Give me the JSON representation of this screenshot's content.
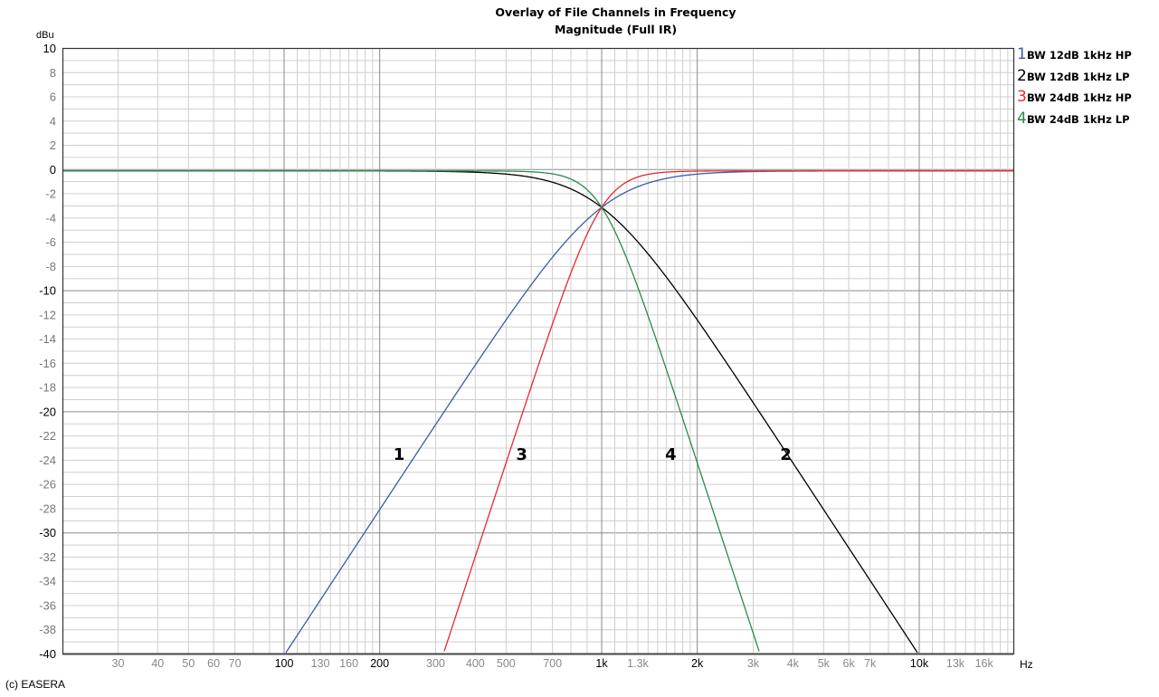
{
  "header": {
    "title_line1": "Overlay of File Channels in Frequency",
    "title_line2": "Magnitude (Full IR)"
  },
  "axes": {
    "y_unit": "dBu",
    "x_unit": "Hz"
  },
  "legend": [
    {
      "num": "1",
      "label": "BW 12dB 1kHz HP",
      "color": "#3c5aa8"
    },
    {
      "num": "2",
      "label": "BW 12dB 1kHz LP",
      "color": "#000000"
    },
    {
      "num": "3",
      "label": "BW 24dB 1kHz HP",
      "color": "#e8282c"
    },
    {
      "num": "4",
      "label": "BW 24dB 1kHz LP",
      "color": "#2a8a4a"
    }
  ],
  "footer": {
    "copyright": "(c) EASERA"
  },
  "chart_data": {
    "type": "line",
    "title": "Overlay of File Channels in Frequency — Magnitude (Full IR)",
    "xlabel": "Hz",
    "ylabel": "dBu",
    "xscale": "log",
    "xlim": [
      20,
      20000
    ],
    "ylim": [
      -40,
      10
    ],
    "grid": true,
    "legend_position": "right",
    "y_ticks": [
      10,
      8,
      6,
      4,
      2,
      0,
      -2,
      -4,
      -6,
      -8,
      -10,
      -12,
      -14,
      -16,
      -18,
      -20,
      -22,
      -24,
      -26,
      -28,
      -30,
      -32,
      -34,
      -36,
      -38,
      -40
    ],
    "y_ticks_bold": [
      10,
      0,
      -10,
      -20,
      -30,
      -40
    ],
    "x_ticks": [
      {
        "v": 30,
        "label": "30",
        "major": false
      },
      {
        "v": 40,
        "label": "40",
        "major": false
      },
      {
        "v": 50,
        "label": "50",
        "major": false
      },
      {
        "v": 60,
        "label": "60",
        "major": false
      },
      {
        "v": 70,
        "label": "70",
        "major": false
      },
      {
        "v": 100,
        "label": "100",
        "major": true
      },
      {
        "v": 130,
        "label": "130",
        "major": false
      },
      {
        "v": 160,
        "label": "160",
        "major": false
      },
      {
        "v": 200,
        "label": "200",
        "major": true
      },
      {
        "v": 300,
        "label": "300",
        "major": false
      },
      {
        "v": 400,
        "label": "400",
        "major": false
      },
      {
        "v": 500,
        "label": "500",
        "major": false
      },
      {
        "v": 700,
        "label": "700",
        "major": false
      },
      {
        "v": 1000,
        "label": "1k",
        "major": true
      },
      {
        "v": 1300,
        "label": "1.3k",
        "major": false
      },
      {
        "v": 2000,
        "label": "2k",
        "major": true
      },
      {
        "v": 3000,
        "label": "3k",
        "major": false
      },
      {
        "v": 4000,
        "label": "4k",
        "major": false
      },
      {
        "v": 5000,
        "label": "5k",
        "major": false
      },
      {
        "v": 6000,
        "label": "6k",
        "major": false
      },
      {
        "v": 7000,
        "label": "7k",
        "major": false
      },
      {
        "v": 10000,
        "label": "10k",
        "major": true
      },
      {
        "v": 13000,
        "label": "13k",
        "major": false
      },
      {
        "v": 16000,
        "label": "16k",
        "major": false
      }
    ],
    "series": [
      {
        "name": "BW 12dB 1kHz HP",
        "id": "1",
        "color": "#3c5aa8",
        "type": "hp",
        "order": 2,
        "fc": 1000,
        "x": [
          100,
          200,
          300,
          500,
          700,
          1000,
          1500,
          2000,
          3000,
          5000,
          10000,
          20000
        ],
        "values": [
          -40,
          -28,
          -21,
          -12.3,
          -7.4,
          -3.0,
          -1.0,
          -0.3,
          -0.1,
          0,
          0,
          0
        ]
      },
      {
        "name": "BW 12dB 1kHz LP",
        "id": "2",
        "color": "#000000",
        "type": "lp",
        "order": 2,
        "fc": 1000,
        "x": [
          20,
          100,
          300,
          500,
          700,
          1000,
          1500,
          2000,
          3000,
          5000,
          9000
        ],
        "values": [
          0,
          0,
          0,
          -0.3,
          -1.2,
          -3.0,
          -7.4,
          -12.3,
          -19.1,
          -28,
          -40
        ]
      },
      {
        "name": "BW 24dB 1kHz HP",
        "id": "3",
        "color": "#e8282c",
        "type": "hp",
        "order": 4,
        "fc": 1000,
        "x": [
          320,
          400,
          500,
          700,
          1000,
          1500,
          2000,
          5000,
          20000
        ],
        "values": [
          -40,
          -32,
          -24,
          -12.5,
          -3.0,
          -0.2,
          0,
          0,
          0
        ]
      },
      {
        "name": "BW 24dB 1kHz LP",
        "id": "4",
        "color": "#2a8a4a",
        "type": "lp",
        "order": 4,
        "fc": 1000,
        "x": [
          20,
          100,
          500,
          700,
          1000,
          1500,
          2000,
          2500,
          3100
        ],
        "values": [
          0,
          0,
          0,
          -0.2,
          -3.0,
          -14,
          -24,
          -32,
          -40
        ]
      }
    ],
    "annotations": [
      {
        "text": "1",
        "x": 230,
        "y": -23.8
      },
      {
        "text": "3",
        "x": 560,
        "y": -23.8
      },
      {
        "text": "4",
        "x": 1650,
        "y": -23.8
      },
      {
        "text": "2",
        "x": 3800,
        "y": -23.8
      }
    ]
  }
}
